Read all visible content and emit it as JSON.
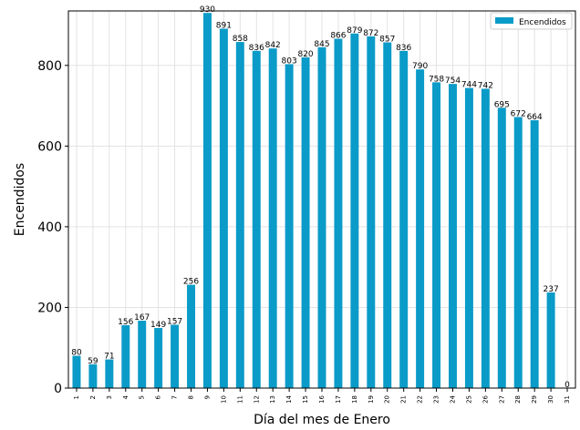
{
  "chart_data": {
    "type": "bar",
    "title": "",
    "xlabel": "Día del mes de Enero",
    "ylabel": "Encendidos",
    "categories": [
      "1",
      "2",
      "3",
      "4",
      "5",
      "6",
      "7",
      "8",
      "9",
      "10",
      "11",
      "12",
      "13",
      "14",
      "15",
      "16",
      "17",
      "18",
      "19",
      "20",
      "21",
      "22",
      "23",
      "24",
      "25",
      "26",
      "27",
      "28",
      "29",
      "30",
      "31"
    ],
    "series": [
      {
        "name": "Encendidos",
        "color": "#0a9bc8",
        "values": [
          80,
          59,
          71,
          156,
          167,
          149,
          157,
          256,
          930,
          891,
          858,
          836,
          842,
          803,
          820,
          845,
          866,
          879,
          872,
          857,
          836,
          790,
          758,
          754,
          744,
          742,
          695,
          672,
          664,
          237,
          0
        ]
      }
    ],
    "ylim": [
      0,
      935
    ],
    "yticks": [
      0,
      200,
      400,
      600,
      800
    ],
    "grid": true,
    "legend_position": "top-right"
  }
}
